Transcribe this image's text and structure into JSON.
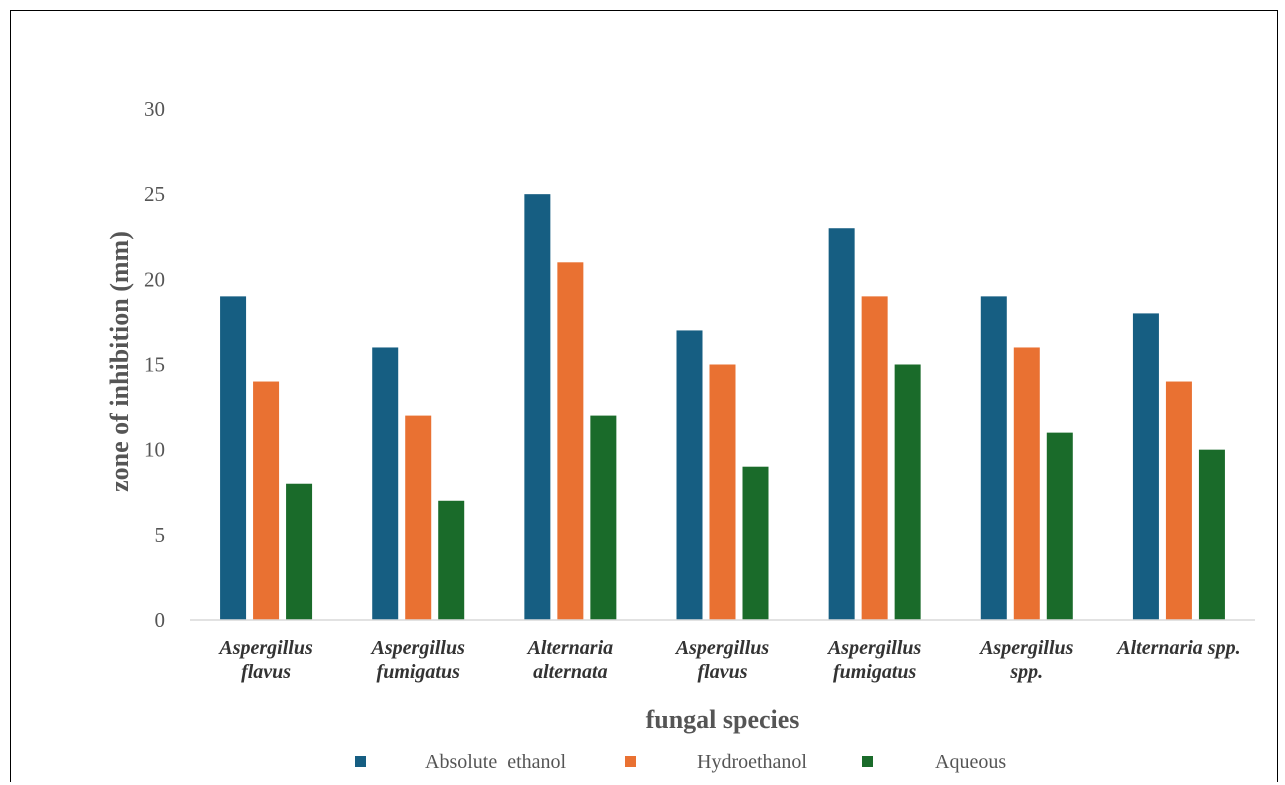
{
  "chart_data": {
    "type": "bar",
    "title": "",
    "xlabel": "fungal species",
    "ylabel": "zone of inhibition (mm)",
    "ylim": [
      0,
      30
    ],
    "yticks": [
      0,
      5,
      10,
      15,
      20,
      25,
      30
    ],
    "grid": false,
    "legend_position": "bottom",
    "categories": [
      [
        "Aspergillus",
        "flavus"
      ],
      [
        "Aspergillus",
        "fumigatus"
      ],
      [
        "Alternaria",
        "alternata"
      ],
      [
        "Aspergillus",
        "flavus"
      ],
      [
        "Aspergillus",
        "fumigatus"
      ],
      [
        "Aspergillus",
        "spp."
      ],
      [
        "Alternaria spp."
      ]
    ],
    "series": [
      {
        "name": "Absolute  ethanol",
        "color": "#165e82",
        "values": [
          19,
          16,
          25,
          17,
          23,
          19,
          18
        ]
      },
      {
        "name": "Hydroethanol",
        "color": "#e97132",
        "values": [
          14,
          12,
          21,
          15,
          19,
          16,
          14
        ]
      },
      {
        "name": "Aqueous",
        "color": "#1a6b2a",
        "values": [
          8,
          7,
          12,
          9,
          15,
          11,
          10
        ]
      }
    ]
  }
}
